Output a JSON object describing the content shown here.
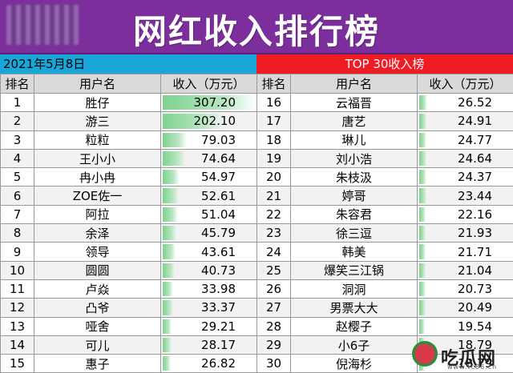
{
  "header": {
    "title": "网红收入排行榜",
    "date": "2021年5月8日",
    "top_label": "TOP 30收入榜"
  },
  "columns": {
    "rank": "排名",
    "user": "用户名",
    "income": "收入（万元）"
  },
  "max_income": 307.2,
  "left_rows": [
    {
      "rank": "1",
      "user": "胜仔",
      "income": "307.20"
    },
    {
      "rank": "2",
      "user": "游三",
      "income": "202.10"
    },
    {
      "rank": "3",
      "user": "粒粒",
      "income": "79.03"
    },
    {
      "rank": "4",
      "user": "王小小",
      "income": "74.64"
    },
    {
      "rank": "5",
      "user": "冉小冉",
      "income": "54.97"
    },
    {
      "rank": "6",
      "user": "ZOE佐一",
      "income": "52.61"
    },
    {
      "rank": "7",
      "user": "阿拉",
      "income": "51.04"
    },
    {
      "rank": "8",
      "user": "余泽",
      "income": "45.79"
    },
    {
      "rank": "9",
      "user": "领导",
      "income": "43.61"
    },
    {
      "rank": "10",
      "user": "圆圆",
      "income": "40.73"
    },
    {
      "rank": "11",
      "user": "卢焱",
      "income": "33.98"
    },
    {
      "rank": "12",
      "user": "凸爷",
      "income": "33.37"
    },
    {
      "rank": "13",
      "user": "哑舍",
      "income": "29.21"
    },
    {
      "rank": "14",
      "user": "可儿",
      "income": "28.17"
    },
    {
      "rank": "15",
      "user": "惠子",
      "income": "26.82"
    }
  ],
  "right_rows": [
    {
      "rank": "16",
      "user": "云福晋",
      "income": "26.52"
    },
    {
      "rank": "17",
      "user": "唐艺",
      "income": "24.91"
    },
    {
      "rank": "18",
      "user": "琳儿",
      "income": "24.77"
    },
    {
      "rank": "19",
      "user": "刘小浩",
      "income": "24.64"
    },
    {
      "rank": "20",
      "user": "朱枝汲",
      "income": "24.37"
    },
    {
      "rank": "21",
      "user": "婷哥",
      "income": "23.44"
    },
    {
      "rank": "22",
      "user": "朱容君",
      "income": "22.16"
    },
    {
      "rank": "23",
      "user": "徐三逗",
      "income": "21.93"
    },
    {
      "rank": "24",
      "user": "韩美",
      "income": "21.71"
    },
    {
      "rank": "25",
      "user": "爆笑三江锅",
      "income": "21.04"
    },
    {
      "rank": "26",
      "user": "洞洞",
      "income": "20.73"
    },
    {
      "rank": "27",
      "user": "男票大大",
      "income": "20.49"
    },
    {
      "rank": "28",
      "user": "赵樱子",
      "income": "19.54"
    },
    {
      "rank": "29",
      "user": "小6子",
      "income": "18.79"
    },
    {
      "rank": "30",
      "user": "倪海杉",
      "income": "18.79"
    }
  ],
  "watermark": {
    "text": "吃瓜网",
    "url": "www.tc86.cn"
  }
}
